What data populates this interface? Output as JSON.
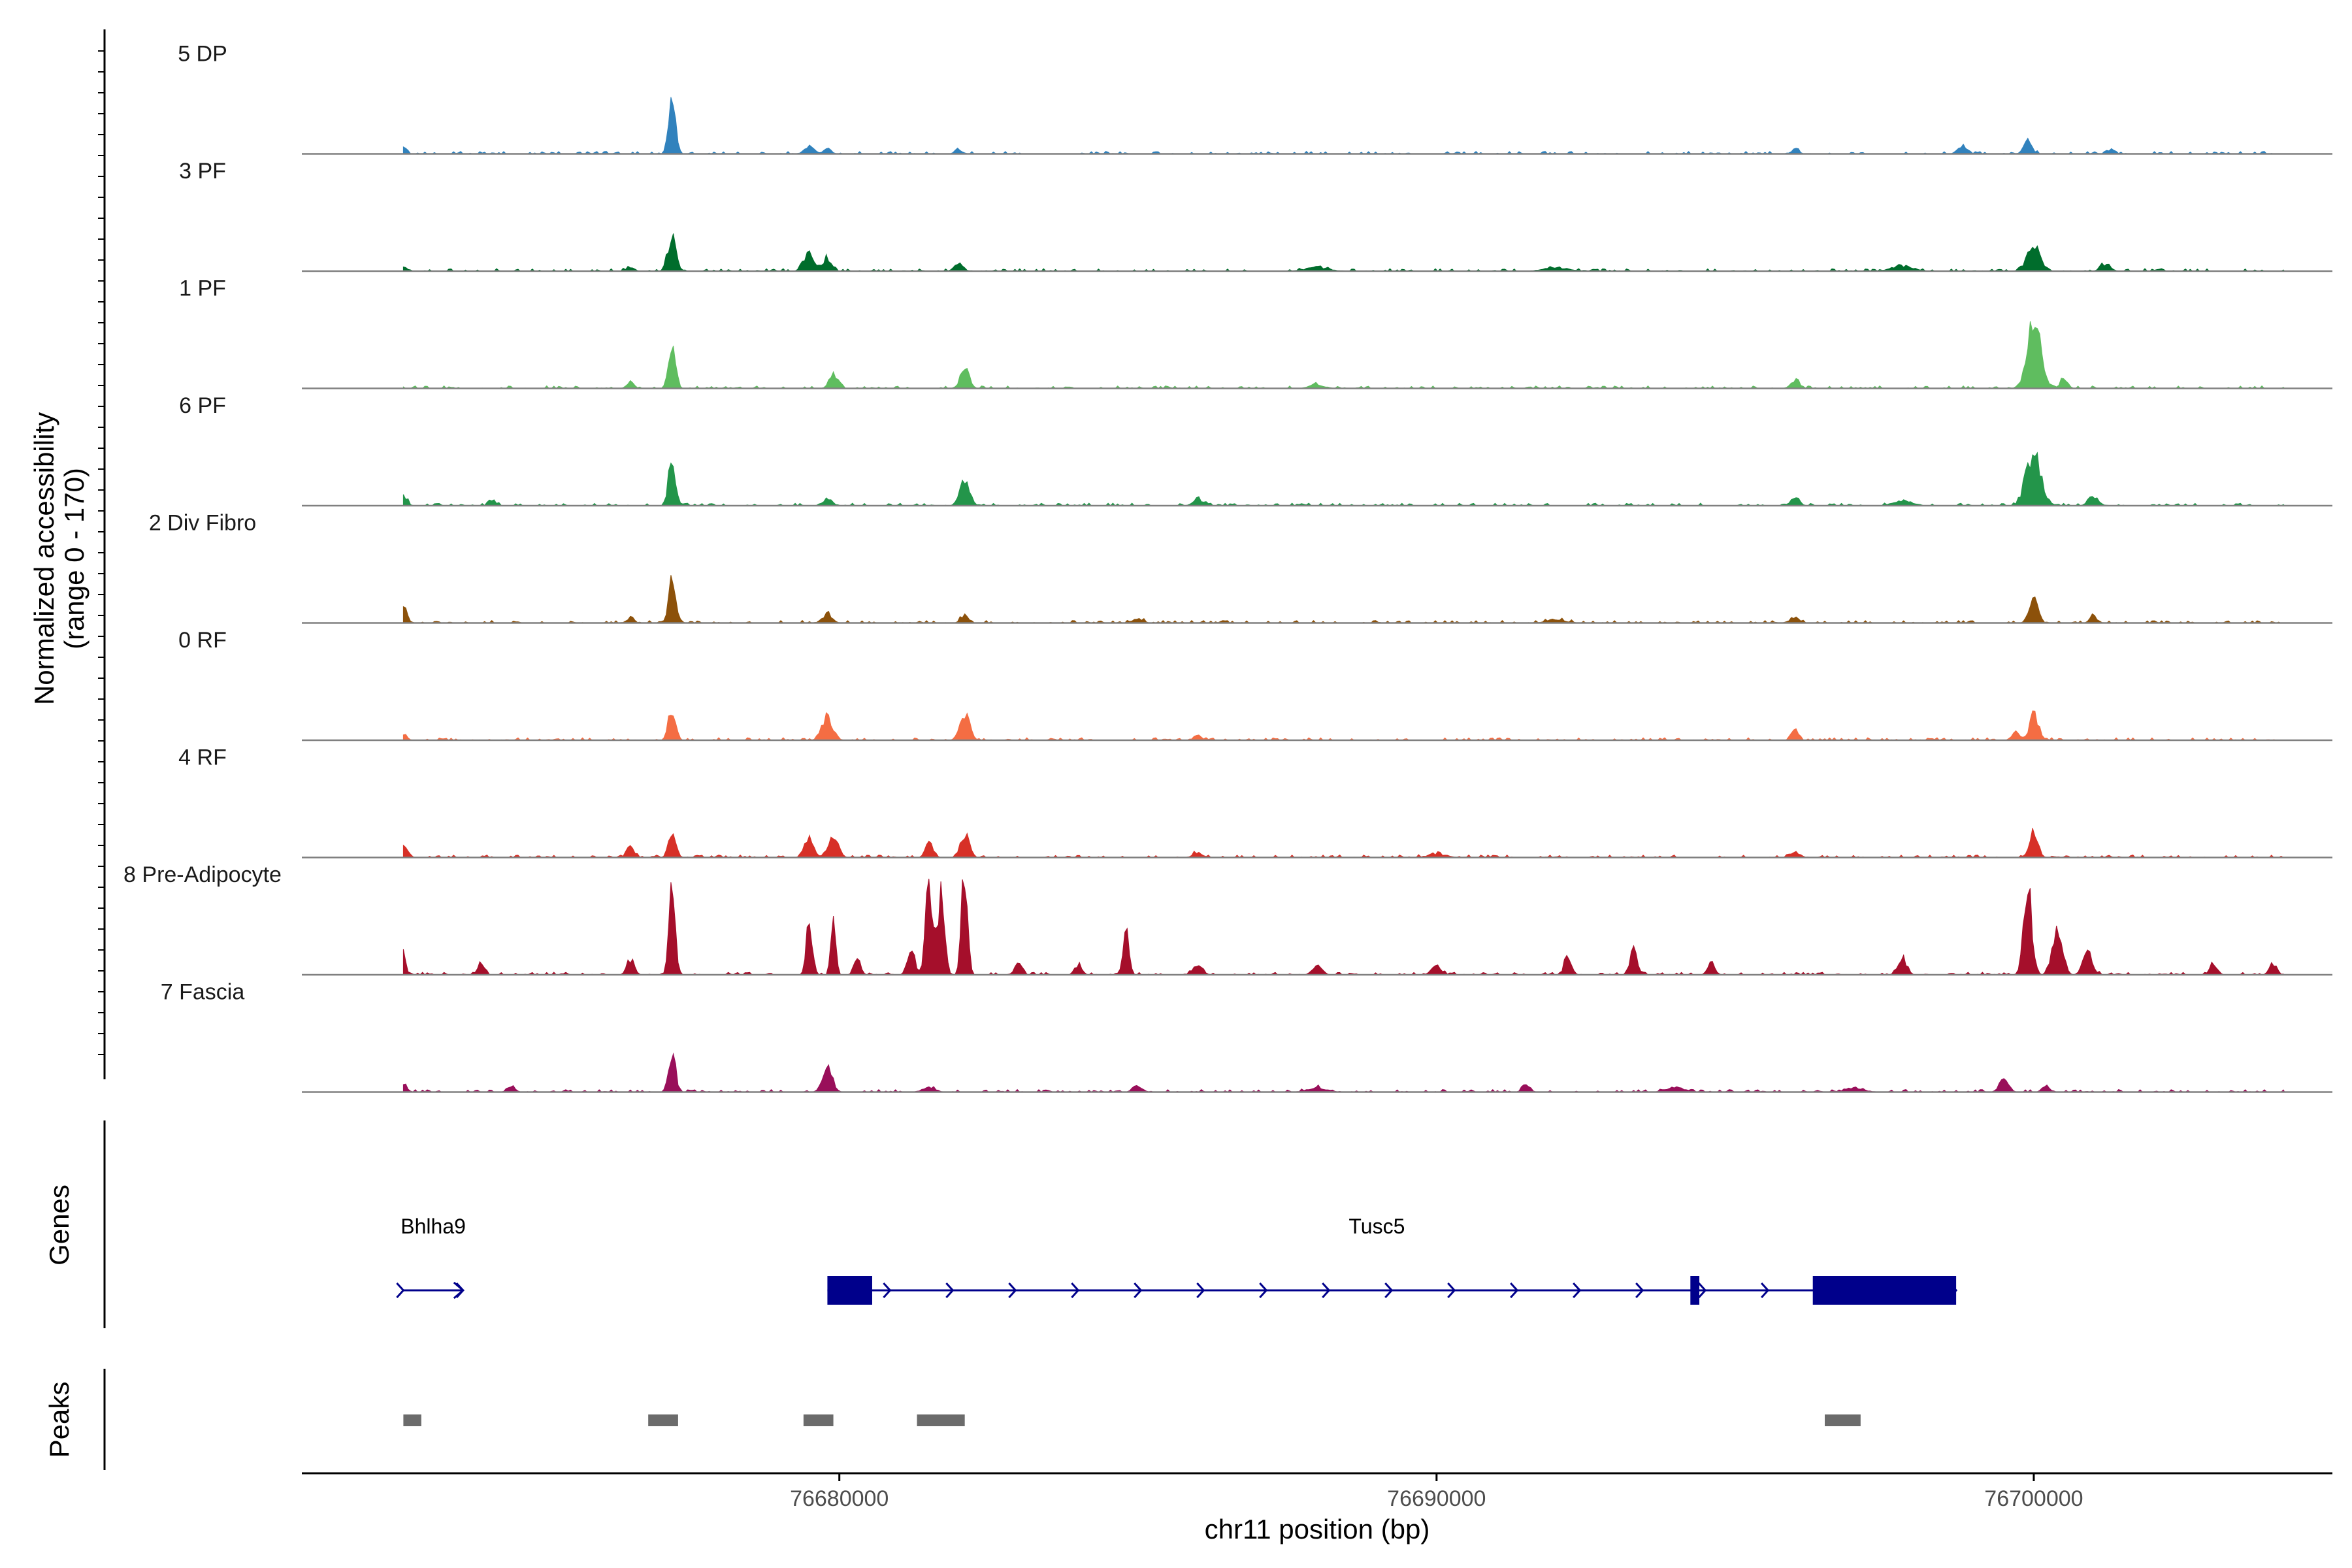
{
  "chart_data": {
    "type": "area",
    "region": {
      "chrom": "chr11",
      "start": 76671000,
      "end": 76705000
    },
    "ylabel_line1": "Normalized accessibility",
    "ylabel_line2": "(range 0 - 170)",
    "ylim": [
      0,
      170
    ],
    "xlabel": "chr11 position (bp)",
    "x_ticks": [
      76680000,
      76690000,
      76700000
    ],
    "x_tick_labels": [
      "76680000",
      "76690000",
      "76700000"
    ],
    "genes_label": "Genes",
    "peaks_label": "Peaks",
    "tracks": [
      {
        "name": "5 DP",
        "color": "#3182bd",
        "peaks": [
          [
            76672700,
            6,
            50
          ],
          [
            76677200,
            56,
            60
          ],
          [
            76679500,
            8,
            80
          ],
          [
            76679800,
            6,
            60
          ],
          [
            76682000,
            5,
            60
          ],
          [
            76696000,
            5,
            60
          ],
          [
            76698800,
            10,
            70
          ],
          [
            76699900,
            14,
            70
          ],
          [
            76701300,
            5,
            60
          ]
        ]
      },
      {
        "name": "3 PF",
        "color": "#006d2c",
        "peaks": [
          [
            76672700,
            5,
            60
          ],
          [
            76676500,
            5,
            60
          ],
          [
            76677200,
            38,
            70
          ],
          [
            76679500,
            20,
            90
          ],
          [
            76679800,
            14,
            70
          ],
          [
            76682000,
            10,
            70
          ],
          [
            76688000,
            4,
            200
          ],
          [
            76692000,
            4,
            200
          ],
          [
            76697800,
            6,
            180
          ],
          [
            76700000,
            30,
            110
          ],
          [
            76701200,
            8,
            80
          ]
        ]
      },
      {
        "name": "1 PF",
        "color": "#5fbd5f",
        "peaks": [
          [
            76676500,
            8,
            60
          ],
          [
            76677200,
            45,
            60
          ],
          [
            76679900,
            18,
            70
          ],
          [
            76682100,
            28,
            70
          ],
          [
            76688000,
            4,
            120
          ],
          [
            76696000,
            10,
            70
          ],
          [
            76700000,
            80,
            110
          ],
          [
            76700500,
            12,
            60
          ]
        ]
      },
      {
        "name": "6 PF",
        "color": "#23954a",
        "peaks": [
          [
            76672700,
            12,
            60
          ],
          [
            76674200,
            6,
            60
          ],
          [
            76677200,
            55,
            60
          ],
          [
            76679800,
            8,
            80
          ],
          [
            76682100,
            28,
            80
          ],
          [
            76686000,
            8,
            80
          ],
          [
            76696000,
            10,
            70
          ],
          [
            76697800,
            6,
            150
          ],
          [
            76700000,
            65,
            120
          ],
          [
            76701000,
            10,
            80
          ]
        ]
      },
      {
        "name": "2 Div Fibro",
        "color": "#8c510a",
        "peaks": [
          [
            76672700,
            18,
            60
          ],
          [
            76676500,
            6,
            60
          ],
          [
            76677200,
            48,
            60
          ],
          [
            76679800,
            10,
            80
          ],
          [
            76682100,
            10,
            60
          ],
          [
            76685000,
            5,
            80
          ],
          [
            76692000,
            4,
            150
          ],
          [
            76696000,
            6,
            80
          ],
          [
            76700000,
            28,
            70
          ],
          [
            76701000,
            8,
            60
          ]
        ]
      },
      {
        "name": "0 RF",
        "color": "#f46d43",
        "peaks": [
          [
            76672700,
            5,
            60
          ],
          [
            76677200,
            38,
            60
          ],
          [
            76679800,
            26,
            90
          ],
          [
            76682100,
            32,
            80
          ],
          [
            76686000,
            6,
            60
          ],
          [
            76696000,
            12,
            60
          ],
          [
            76699700,
            12,
            60
          ],
          [
            76700000,
            30,
            70
          ]
        ]
      },
      {
        "name": "4 RF",
        "color": "#d73027",
        "peaks": [
          [
            76672700,
            12,
            60
          ],
          [
            76676500,
            12,
            60
          ],
          [
            76677200,
            28,
            60
          ],
          [
            76679500,
            20,
            80
          ],
          [
            76679900,
            25,
            80
          ],
          [
            76681500,
            18,
            60
          ],
          [
            76682100,
            28,
            70
          ],
          [
            76686000,
            5,
            80
          ],
          [
            76690000,
            4,
            150
          ],
          [
            76696000,
            6,
            80
          ],
          [
            76700000,
            33,
            70
          ]
        ]
      },
      {
        "name": "8 Pre-Adipocyte",
        "color": "#a50f2b",
        "peaks": [
          [
            76672700,
            38,
            30
          ],
          [
            76674000,
            12,
            60
          ],
          [
            76676500,
            18,
            60
          ],
          [
            76677200,
            95,
            50
          ],
          [
            76679500,
            60,
            50
          ],
          [
            76679900,
            75,
            40
          ],
          [
            76680300,
            25,
            50
          ],
          [
            76681200,
            30,
            60
          ],
          [
            76681500,
            95,
            60
          ],
          [
            76681700,
            90,
            60
          ],
          [
            76682100,
            130,
            50
          ],
          [
            76683000,
            15,
            60
          ],
          [
            76684000,
            12,
            60
          ],
          [
            76684800,
            45,
            50
          ],
          [
            76686000,
            10,
            80
          ],
          [
            76688000,
            10,
            80
          ],
          [
            76690000,
            10,
            80
          ],
          [
            76692200,
            22,
            60
          ],
          [
            76693300,
            28,
            60
          ],
          [
            76694600,
            15,
            60
          ],
          [
            76697800,
            20,
            70
          ],
          [
            76699900,
            95,
            70
          ],
          [
            76700400,
            60,
            80
          ],
          [
            76700900,
            25,
            80
          ],
          [
            76703000,
            12,
            60
          ],
          [
            76704000,
            12,
            60
          ]
        ]
      },
      {
        "name": "7 Fascia",
        "color": "#990f5a",
        "peaks": [
          [
            76672700,
            8,
            60
          ],
          [
            76674500,
            8,
            60
          ],
          [
            76677200,
            42,
            60
          ],
          [
            76679800,
            30,
            80
          ],
          [
            76681500,
            6,
            100
          ],
          [
            76685000,
            5,
            80
          ],
          [
            76688000,
            5,
            150
          ],
          [
            76691500,
            10,
            60
          ],
          [
            76694000,
            5,
            150
          ],
          [
            76697000,
            5,
            150
          ],
          [
            76699500,
            18,
            70
          ],
          [
            76700200,
            8,
            60
          ]
        ]
      }
    ],
    "genes": [
      {
        "name": "Bhlha9",
        "start": 76672700,
        "end": 76673700,
        "strand": "+",
        "exons": []
      },
      {
        "name": "Tusc5",
        "start": 76679800,
        "end": 76698700,
        "strand": "+",
        "exons": [
          [
            76679800,
            76680550
          ],
          [
            76694250,
            76694400
          ],
          [
            76696300,
            76698700
          ]
        ]
      }
    ],
    "peak_regions": [
      [
        76672700,
        76673000
      ],
      [
        76676800,
        76677300
      ],
      [
        76679400,
        76679900
      ],
      [
        76681300,
        76682100
      ],
      [
        76696500,
        76697100
      ]
    ]
  }
}
